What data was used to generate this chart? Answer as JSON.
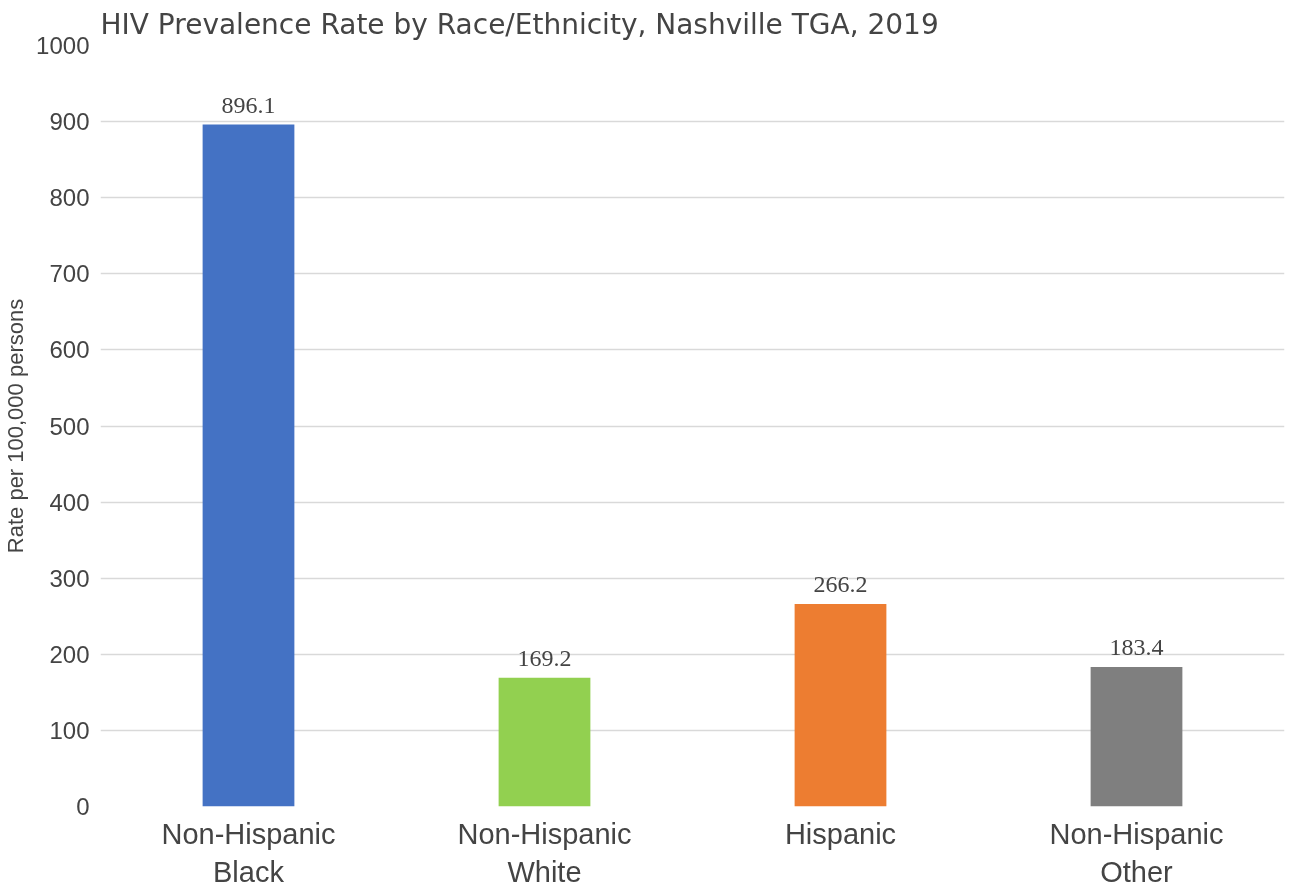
{
  "chart_data": {
    "type": "bar",
    "title": "HIV Prevalence Rate by Race/Ethnicity, Nashville TGA, 2019",
    "ylabel": "Rate per 100,000 persons",
    "categories": [
      "Non-Hispanic\nBlack",
      "Non-Hispanic\nWhite",
      "Hispanic",
      "Non-Hispanic\nOther"
    ],
    "values": [
      896.1,
      169.2,
      266.2,
      183.4
    ],
    "colors": [
      "#4472c4",
      "#92d050",
      "#ed7d31",
      "#7f7f7f"
    ],
    "ylim": [
      0,
      1000
    ],
    "yticks": [
      0,
      100,
      200,
      300,
      400,
      500,
      600,
      700,
      800,
      900,
      1000
    ],
    "grid": "y",
    "data_labels": true
  }
}
